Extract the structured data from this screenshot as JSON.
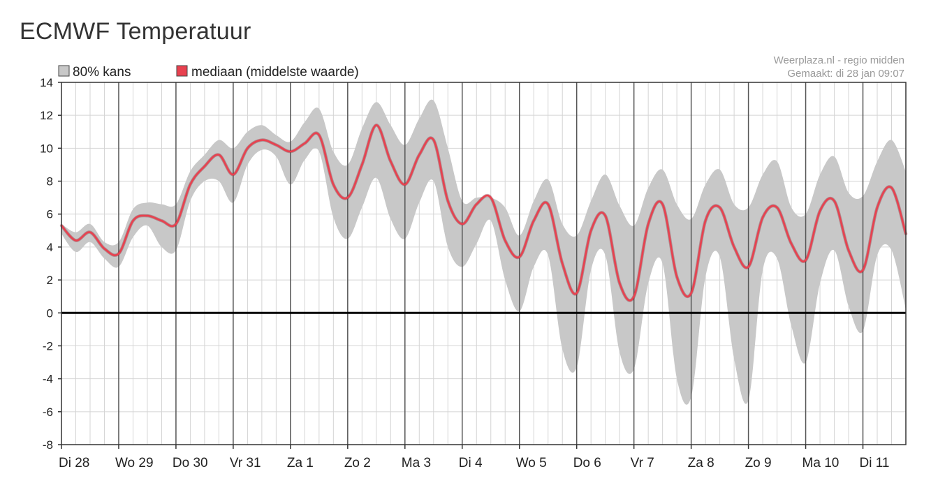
{
  "page": {
    "title": "ECMWF Temperatuur"
  },
  "chart_data": {
    "type": "area",
    "title": "ECMWF Temperatuur",
    "source_line_1": "Weerplaza.nl - regio midden",
    "source_line_2": "Gemaakt: di 28 jan 09:07",
    "legend": [
      {
        "label": "80% kans",
        "color": "#c8c8c8"
      },
      {
        "label": "mediaan (middelste waarde)",
        "color": "#e8414f"
      }
    ],
    "ylim": [
      -8,
      14
    ],
    "yticks": [
      14,
      12,
      10,
      8,
      6,
      4,
      2,
      0,
      -2,
      -4,
      -6,
      -8
    ],
    "xlim": [
      0,
      14.75
    ],
    "day_labels": [
      "Di 28",
      "Wo 29",
      "Do 30",
      "Vr 31",
      "Za 1",
      "Zo 2",
      "Ma 3",
      "Di 4",
      "Wo 5",
      "Do 6",
      "Vr 7",
      "Za 8",
      "Zo 9",
      "Ma 10",
      "Di 11"
    ],
    "grid": true,
    "colors": {
      "band": "#c8c8c8",
      "median": "#e8414f",
      "zero_line": "#000000",
      "major_grid": "#555555",
      "minor_grid": "#d4d4d4"
    },
    "x": [
      0,
      0.25,
      0.5,
      0.75,
      1,
      1.25,
      1.5,
      1.75,
      2,
      2.25,
      2.5,
      2.75,
      3,
      3.25,
      3.5,
      3.75,
      4,
      4.25,
      4.5,
      4.75,
      5,
      5.25,
      5.5,
      5.75,
      6,
      6.25,
      6.5,
      6.75,
      7,
      7.25,
      7.5,
      7.75,
      8,
      8.25,
      8.5,
      8.75,
      9,
      9.25,
      9.5,
      9.75,
      10,
      10.25,
      10.5,
      10.75,
      11,
      11.25,
      11.5,
      11.75,
      12,
      12.25,
      12.5,
      12.75,
      13,
      13.25,
      13.5,
      13.75,
      14,
      14.25,
      14.5,
      14.75
    ],
    "series": [
      {
        "name": "mediaan (middelste waarde)",
        "values": [
          5.3,
          4.4,
          4.9,
          3.9,
          3.6,
          5.6,
          5.9,
          5.6,
          5.4,
          7.8,
          8.9,
          9.6,
          8.4,
          10.0,
          10.5,
          10.2,
          9.8,
          10.3,
          10.8,
          7.8,
          7.0,
          9.0,
          11.4,
          9.2,
          7.8,
          9.6,
          10.5,
          6.8,
          5.4,
          6.6,
          7.0,
          4.4,
          3.4,
          5.6,
          6.6,
          3.0,
          1.2,
          5.0,
          5.9,
          1.8,
          1.0,
          5.4,
          6.6,
          2.2,
          1.2,
          5.6,
          6.4,
          4.0,
          2.8,
          5.8,
          6.4,
          4.2,
          3.2,
          6.2,
          6.8,
          3.8,
          2.6,
          6.4,
          7.6,
          4.8
        ]
      },
      {
        "name": "80% kans (boven)",
        "values": [
          5.4,
          4.9,
          5.4,
          4.3,
          4.3,
          6.3,
          6.7,
          6.6,
          6.6,
          8.6,
          9.6,
          10.5,
          10.0,
          11.0,
          11.4,
          10.8,
          10.4,
          11.6,
          12.4,
          9.8,
          9.0,
          11.2,
          12.8,
          11.4,
          10.2,
          11.8,
          12.9,
          10.0,
          6.8,
          7.0,
          7.0,
          6.4,
          4.7,
          6.8,
          8.1,
          5.4,
          4.7,
          6.8,
          8.4,
          6.5,
          5.3,
          7.6,
          8.7,
          6.6,
          5.7,
          7.8,
          8.7,
          6.6,
          6.4,
          8.4,
          9.2,
          6.4,
          6.0,
          8.4,
          9.5,
          7.3,
          7.1,
          9.2,
          10.5,
          8.6
        ]
      },
      {
        "name": "80% kans (onder)",
        "values": [
          4.8,
          3.7,
          4.3,
          3.3,
          2.8,
          4.6,
          5.3,
          4.0,
          3.8,
          6.8,
          8.0,
          8.0,
          6.7,
          9.0,
          9.9,
          9.5,
          7.8,
          9.3,
          9.8,
          5.8,
          4.5,
          6.4,
          8.2,
          5.7,
          4.5,
          6.7,
          8.0,
          4.0,
          2.8,
          4.2,
          5.6,
          2.0,
          0.1,
          2.8,
          3.5,
          -2.2,
          -3.3,
          2.6,
          3.5,
          -2.4,
          -3.4,
          1.8,
          3.0,
          -4.0,
          -5.1,
          2.2,
          3.4,
          -2.8,
          -5.3,
          2.6,
          3.3,
          -0.8,
          -3.0,
          1.8,
          3.8,
          0.4,
          -1.1,
          3.5,
          3.8,
          0.2
        ]
      }
    ]
  }
}
